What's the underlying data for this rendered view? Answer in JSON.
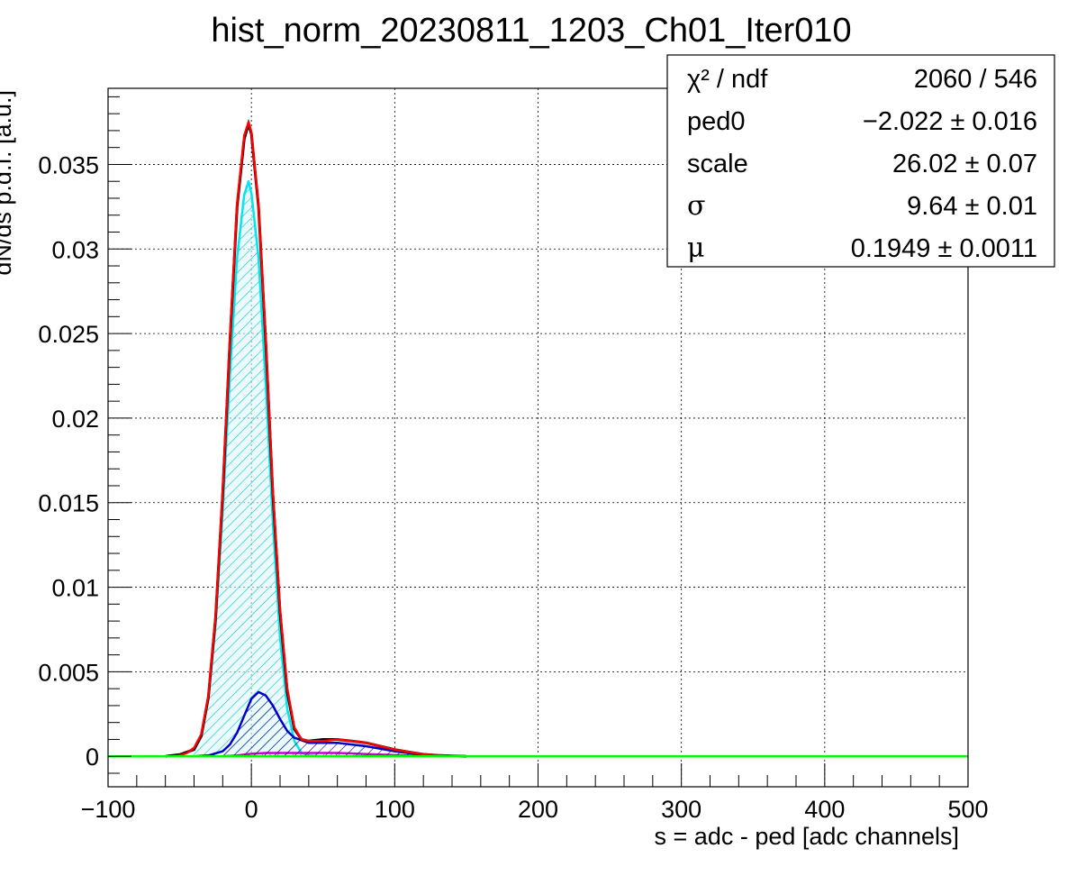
{
  "chart_data": {
    "type": "line",
    "title": "hist_norm_20230811_1203_Ch01_Iter010",
    "xlabel": "s = adc - ped [adc channels]",
    "ylabel": "dN/ds p.d.f. [a.u.]",
    "xlim": [
      -100,
      500
    ],
    "ylim": [
      -0.0018,
      0.0395
    ],
    "grid": true,
    "x_ticks": [
      "−100",
      "0",
      "100",
      "200",
      "300",
      "400",
      "500"
    ],
    "x_tick_values": [
      -100,
      0,
      100,
      200,
      300,
      400,
      500
    ],
    "y_ticks": [
      "0",
      "0.005",
      "0.01",
      "0.015",
      "0.02",
      "0.025",
      "0.03",
      "0.035"
    ],
    "y_tick_values": [
      0,
      0.005,
      0.01,
      0.015,
      0.02,
      0.025,
      0.03,
      0.035
    ],
    "series": [
      {
        "color": "#000000",
        "style": "histogram",
        "x": [
          -60,
          -50,
          -40,
          -35,
          -30,
          -25,
          -20,
          -15,
          -10,
          -5,
          -2,
          0,
          5,
          10,
          15,
          20,
          25,
          30,
          35,
          40,
          50,
          60,
          70,
          80,
          90,
          100,
          110,
          120,
          130,
          140,
          150
        ],
        "values": [
          0,
          0.0001,
          0.0004,
          0.0012,
          0.0035,
          0.0082,
          0.0155,
          0.0245,
          0.0325,
          0.0365,
          0.0374,
          0.0368,
          0.0325,
          0.0245,
          0.0155,
          0.0085,
          0.0038,
          0.0016,
          0.001,
          0.0009,
          0.001,
          0.001,
          0.0009,
          0.0008,
          0.0006,
          0.0004,
          0.00025,
          0.00012,
          6e-05,
          2e-05,
          0
        ]
      },
      {
        "color": "#ff0000",
        "style": "line",
        "x": [
          -55,
          -50,
          -45,
          -40,
          -35,
          -30,
          -25,
          -20,
          -15,
          -10,
          -5,
          -2,
          0,
          5,
          10,
          15,
          20,
          25,
          30,
          35,
          40,
          50,
          60,
          70,
          80,
          90,
          100,
          110,
          120,
          130,
          140,
          150
        ],
        "values": [
          0,
          5e-05,
          0.0002,
          0.0005,
          0.0013,
          0.0036,
          0.0083,
          0.0157,
          0.0247,
          0.0327,
          0.0367,
          0.0375,
          0.0369,
          0.0326,
          0.0247,
          0.0157,
          0.0087,
          0.004,
          0.0017,
          0.001,
          0.0009,
          0.0009,
          0.001,
          0.0009,
          0.0008,
          0.0006,
          0.0004,
          0.00025,
          0.00012,
          6e-05,
          2e-05,
          0
        ]
      },
      {
        "color": "#00e5ee",
        "style": "hatched",
        "x": [
          -55,
          -50,
          -40,
          -35,
          -30,
          -25,
          -20,
          -15,
          -10,
          -5,
          -2,
          0,
          5,
          10,
          15,
          20,
          25,
          30,
          35,
          40,
          50
        ],
        "values": [
          0,
          5e-05,
          0.0004,
          0.0012,
          0.0034,
          0.0078,
          0.0145,
          0.0225,
          0.0295,
          0.0332,
          0.034,
          0.0333,
          0.0295,
          0.022,
          0.0138,
          0.007,
          0.0028,
          0.0009,
          0.0002,
          5e-05,
          0
        ]
      },
      {
        "color": "#0000cc",
        "style": "hatched",
        "x": [
          -40,
          -30,
          -20,
          -15,
          -10,
          -5,
          0,
          5,
          10,
          15,
          20,
          25,
          30,
          40,
          50,
          60,
          70,
          80,
          90,
          100,
          110,
          120,
          130,
          140
        ],
        "values": [
          0,
          5e-05,
          0.0003,
          0.0007,
          0.0014,
          0.0024,
          0.0034,
          0.0038,
          0.0036,
          0.003,
          0.0022,
          0.0015,
          0.0011,
          0.0008,
          0.0008,
          0.0008,
          0.0007,
          0.0006,
          0.00045,
          0.0003,
          0.00018,
          0.0001,
          4e-05,
          0
        ]
      },
      {
        "color": "#cc00cc",
        "style": "hatched",
        "x": [
          -20,
          -10,
          0,
          10,
          20,
          30,
          40,
          50,
          60,
          70,
          80,
          90,
          100,
          110,
          120,
          130,
          140
        ],
        "values": [
          0,
          5e-05,
          0.00015,
          0.0002,
          0.0002,
          0.0002,
          0.0002,
          0.0002,
          0.0002,
          0.00017,
          0.00013,
          0.0001,
          7e-05,
          4e-05,
          2e-05,
          1e-05,
          0
        ]
      },
      {
        "color": "#00ff00",
        "style": "line",
        "x": [
          -100,
          500
        ],
        "values": [
          0,
          0
        ]
      }
    ]
  },
  "stats": {
    "rows": [
      {
        "label": "χ² / ndf",
        "value": "2060 / 546"
      },
      {
        "label": "ped0",
        "value": "−2.022 ± 0.016"
      },
      {
        "label": "scale",
        "value": "26.02 ± 0.07"
      },
      {
        "label": "σ",
        "value": "9.64 ± 0.01"
      },
      {
        "label": "μ",
        "value": "0.1949 ± 0.0011"
      }
    ]
  }
}
